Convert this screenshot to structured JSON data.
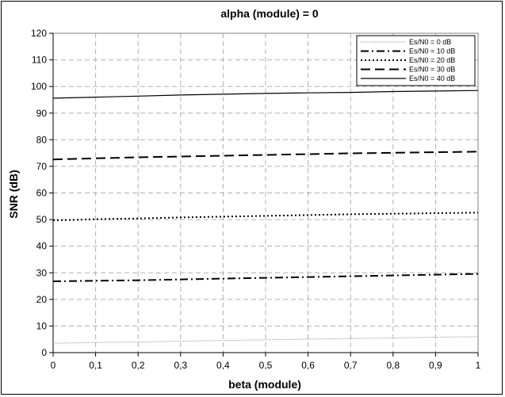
{
  "chart_data": {
    "type": "line",
    "title": "alpha (module) = 0",
    "xlabel": "beta (module)",
    "ylabel": "SNR (dB)",
    "xlim": [
      0,
      1
    ],
    "ylim": [
      0,
      120
    ],
    "x_ticks": [
      "0",
      "0,1",
      "0,2",
      "0,3",
      "0,4",
      "0,5",
      "0,6",
      "0,7",
      "0,8",
      "0,9",
      "1"
    ],
    "y_ticks": [
      "0",
      "10",
      "20",
      "30",
      "40",
      "50",
      "60",
      "70",
      "80",
      "90",
      "100",
      "110",
      "120"
    ],
    "grid": true,
    "legend_position": "top-right",
    "x": [
      0,
      0.1,
      0.2,
      0.3,
      0.4,
      0.5,
      0.6,
      0.7,
      0.8,
      0.9,
      1
    ],
    "series": [
      {
        "name": "Es/N0 = 0 dB",
        "style": "dotted-thin",
        "color": "#999999",
        "values": [
          3.5,
          3.8,
          4.0,
          4.3,
          4.6,
          4.8,
          5.1,
          5.3,
          5.5,
          5.8,
          6.0
        ]
      },
      {
        "name": "Es/N0 = 10 dB",
        "style": "dashdot",
        "color": "#000000",
        "values": [
          26.8,
          27.0,
          27.2,
          27.5,
          27.8,
          28.1,
          28.4,
          28.7,
          29.0,
          29.3,
          29.6
        ]
      },
      {
        "name": "Es/N0 = 20 dB",
        "style": "dotted",
        "color": "#000000",
        "values": [
          49.7,
          50.1,
          50.4,
          50.8,
          51.1,
          51.4,
          51.7,
          52.0,
          52.2,
          52.4,
          52.6
        ]
      },
      {
        "name": "Es/N0 = 30 dB",
        "style": "dashed",
        "color": "#000000",
        "values": [
          72.6,
          73.0,
          73.4,
          73.7,
          74.0,
          74.3,
          74.6,
          74.9,
          75.1,
          75.3,
          75.5
        ]
      },
      {
        "name": "Es/N0 = 40 dB",
        "style": "solid",
        "color": "#000000",
        "values": [
          95.6,
          96.0,
          96.4,
          96.8,
          97.1,
          97.4,
          97.6,
          97.8,
          98.1,
          98.3,
          98.5
        ]
      }
    ]
  }
}
